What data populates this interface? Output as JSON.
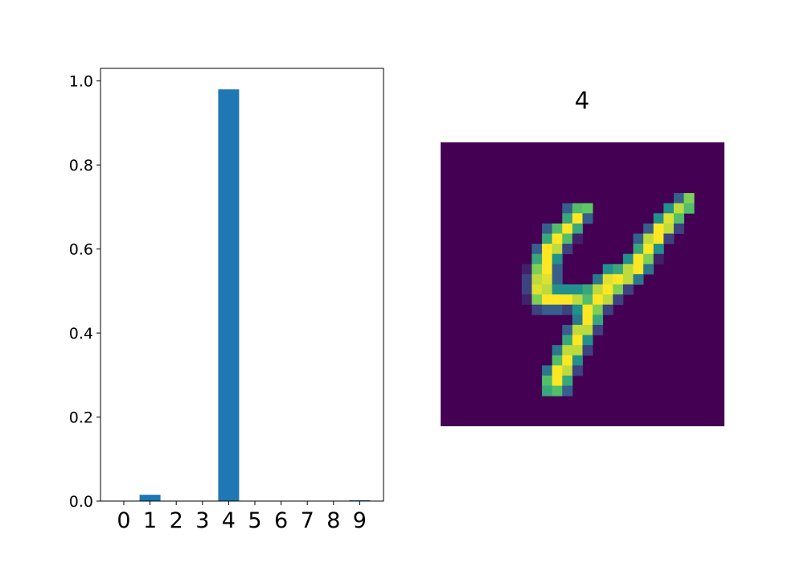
{
  "chart_data": [
    {
      "type": "bar",
      "categories": [
        "0",
        "1",
        "2",
        "3",
        "4",
        "5",
        "6",
        "7",
        "8",
        "9"
      ],
      "values": [
        0.0,
        0.015,
        0.0,
        0.0,
        0.98,
        0.0,
        0.0,
        0.0,
        0.0,
        0.002
      ],
      "yticks": [
        "0.0",
        "0.2",
        "0.4",
        "0.6",
        "0.8",
        "1.0"
      ],
      "ylim": [
        0,
        1.03
      ],
      "color": "#1f77b4",
      "grid": false
    },
    {
      "type": "heatmap",
      "title": "4",
      "colormap": "viridis",
      "grid": false,
      "rows": 28,
      "cols": 28,
      "description_value_range": [
        0,
        1
      ],
      "pixels": [
        [
          0,
          0,
          0,
          0,
          0,
          0,
          0,
          0,
          0,
          0,
          0,
          0,
          0,
          0,
          0,
          0,
          0,
          0,
          0,
          0,
          0,
          0,
          0,
          0,
          0,
          0,
          0,
          0
        ],
        [
          0,
          0,
          0,
          0,
          0,
          0,
          0,
          0,
          0,
          0,
          0,
          0,
          0,
          0,
          0,
          0,
          0,
          0,
          0,
          0,
          0,
          0,
          0,
          0,
          0,
          0,
          0,
          0
        ],
        [
          0,
          0,
          0,
          0,
          0,
          0,
          0,
          0,
          0,
          0,
          0,
          0,
          0,
          0,
          0,
          0,
          0,
          0,
          0,
          0,
          0,
          0,
          0,
          0,
          0,
          0,
          0,
          0
        ],
        [
          0,
          0,
          0,
          0,
          0,
          0,
          0,
          0,
          0,
          0,
          0,
          0,
          0,
          0,
          0,
          0,
          0,
          0,
          0,
          0,
          0,
          0,
          0,
          0,
          0,
          0,
          0,
          0
        ],
        [
          0,
          0,
          0,
          0,
          0,
          0,
          0,
          0,
          0,
          0,
          0,
          0,
          0,
          0,
          0,
          0,
          0,
          0,
          0,
          0,
          0,
          0,
          0,
          0,
          0,
          0,
          0,
          0
        ],
        [
          0,
          0,
          0,
          0,
          0,
          0,
          0,
          0,
          0,
          0,
          0,
          0,
          0,
          0,
          0,
          0,
          0,
          0,
          0,
          0,
          0,
          0,
          0,
          0.3,
          0.8,
          0,
          0,
          0
        ],
        [
          0,
          0,
          0,
          0,
          0,
          0,
          0,
          0,
          0,
          0,
          0,
          0,
          0.3,
          0.7,
          0.75,
          0,
          0,
          0,
          0,
          0,
          0,
          0,
          0.5,
          0.9,
          0.7,
          0,
          0,
          0
        ],
        [
          0,
          0,
          0,
          0,
          0,
          0,
          0,
          0,
          0,
          0,
          0,
          0,
          0.6,
          1,
          0.3,
          0,
          0,
          0,
          0,
          0,
          0,
          0.5,
          0.95,
          0.7,
          0,
          0,
          0,
          0
        ],
        [
          0,
          0,
          0,
          0,
          0,
          0,
          0,
          0,
          0,
          0,
          0.3,
          0.7,
          1,
          0.6,
          0,
          0,
          0,
          0,
          0,
          0,
          0.3,
          1,
          0.9,
          0.2,
          0,
          0,
          0,
          0
        ],
        [
          0,
          0,
          0,
          0,
          0,
          0,
          0,
          0,
          0,
          0,
          0.6,
          1,
          0.7,
          0.1,
          0,
          0,
          0,
          0,
          0,
          0.3,
          0.9,
          1,
          0.2,
          0,
          0,
          0,
          0,
          0
        ],
        [
          0,
          0,
          0,
          0,
          0,
          0,
          0,
          0,
          0,
          0.3,
          1,
          0.9,
          0.2,
          0,
          0,
          0,
          0,
          0,
          0,
          0.6,
          1,
          0.5,
          0,
          0,
          0,
          0,
          0,
          0
        ],
        [
          0,
          0,
          0,
          0,
          0,
          0,
          0,
          0,
          0,
          0.6,
          1,
          0.5,
          0,
          0,
          0,
          0,
          0,
          0,
          0.5,
          1,
          0.8,
          0.1,
          0,
          0,
          0,
          0,
          0,
          0
        ],
        [
          0,
          0,
          0,
          0,
          0,
          0,
          0,
          0,
          0.1,
          0.8,
          1,
          0.3,
          0,
          0,
          0,
          0,
          0.5,
          0.6,
          0.9,
          1,
          0.4,
          0,
          0,
          0,
          0,
          0,
          0,
          0
        ],
        [
          0,
          0,
          0,
          0,
          0,
          0,
          0,
          0,
          0.2,
          0.9,
          0.95,
          0.3,
          0,
          0,
          0,
          0.4,
          0.95,
          1,
          0.9,
          0.4,
          0,
          0,
          0,
          0,
          0,
          0,
          0,
          0
        ],
        [
          0,
          0,
          0,
          0,
          0,
          0,
          0,
          0,
          0.2,
          0.95,
          0.9,
          0.5,
          0.5,
          0.5,
          0.6,
          0.9,
          1,
          0.8,
          0.2,
          0,
          0,
          0,
          0,
          0,
          0,
          0,
          0,
          0
        ],
        [
          0,
          0,
          0,
          0,
          0,
          0,
          0,
          0,
          0.1,
          0.8,
          1,
          1,
          1,
          0.9,
          0.7,
          1,
          0.9,
          0.2,
          0,
          0,
          0,
          0,
          0,
          0,
          0,
          0,
          0,
          0
        ],
        [
          0,
          0,
          0,
          0,
          0,
          0,
          0,
          0,
          0,
          0.2,
          0.3,
          0.3,
          0.2,
          0.5,
          1,
          0.8,
          0.2,
          0,
          0,
          0,
          0,
          0,
          0,
          0,
          0,
          0,
          0,
          0
        ],
        [
          0,
          0,
          0,
          0,
          0,
          0,
          0,
          0,
          0,
          0,
          0,
          0,
          0,
          0.4,
          1,
          0.6,
          0,
          0,
          0,
          0,
          0,
          0,
          0,
          0,
          0,
          0,
          0,
          0
        ],
        [
          0,
          0,
          0,
          0,
          0,
          0,
          0,
          0,
          0,
          0,
          0,
          0,
          0.3,
          0.9,
          0.9,
          0.2,
          0,
          0,
          0,
          0,
          0,
          0,
          0,
          0,
          0,
          0,
          0,
          0
        ],
        [
          0,
          0,
          0,
          0,
          0,
          0,
          0,
          0,
          0,
          0,
          0,
          0,
          0.6,
          1,
          0.5,
          0,
          0,
          0,
          0,
          0,
          0,
          0,
          0,
          0,
          0,
          0,
          0,
          0
        ],
        [
          0,
          0,
          0,
          0,
          0,
          0,
          0,
          0,
          0,
          0,
          0,
          0.4,
          0.9,
          0.9,
          0.2,
          0,
          0,
          0,
          0,
          0,
          0,
          0,
          0,
          0,
          0,
          0,
          0,
          0
        ],
        [
          0,
          0,
          0,
          0,
          0,
          0,
          0,
          0,
          0,
          0,
          0,
          0.7,
          1,
          0.5,
          0,
          0,
          0,
          0,
          0,
          0,
          0,
          0,
          0,
          0,
          0,
          0,
          0,
          0
        ],
        [
          0,
          0,
          0,
          0,
          0,
          0,
          0,
          0,
          0,
          0,
          0.4,
          1,
          0.9,
          0.2,
          0,
          0,
          0,
          0,
          0,
          0,
          0,
          0,
          0,
          0,
          0,
          0,
          0,
          0
        ],
        [
          0,
          0,
          0,
          0,
          0,
          0,
          0,
          0,
          0,
          0,
          0.7,
          1,
          0.6,
          0,
          0,
          0,
          0,
          0,
          0,
          0,
          0,
          0,
          0,
          0,
          0,
          0,
          0,
          0
        ],
        [
          0,
          0,
          0,
          0,
          0,
          0,
          0,
          0,
          0,
          0,
          0.6,
          0.7,
          0.3,
          0,
          0,
          0,
          0,
          0,
          0,
          0,
          0,
          0,
          0,
          0,
          0,
          0,
          0,
          0
        ],
        [
          0,
          0,
          0,
          0,
          0,
          0,
          0,
          0,
          0,
          0,
          0,
          0,
          0,
          0,
          0,
          0,
          0,
          0,
          0,
          0,
          0,
          0,
          0,
          0,
          0,
          0,
          0,
          0
        ],
        [
          0,
          0,
          0,
          0,
          0,
          0,
          0,
          0,
          0,
          0,
          0,
          0,
          0,
          0,
          0,
          0,
          0,
          0,
          0,
          0,
          0,
          0,
          0,
          0,
          0,
          0,
          0,
          0
        ],
        [
          0,
          0,
          0,
          0,
          0,
          0,
          0,
          0,
          0,
          0,
          0,
          0,
          0,
          0,
          0,
          0,
          0,
          0,
          0,
          0,
          0,
          0,
          0,
          0,
          0,
          0,
          0,
          0
        ]
      ]
    }
  ]
}
